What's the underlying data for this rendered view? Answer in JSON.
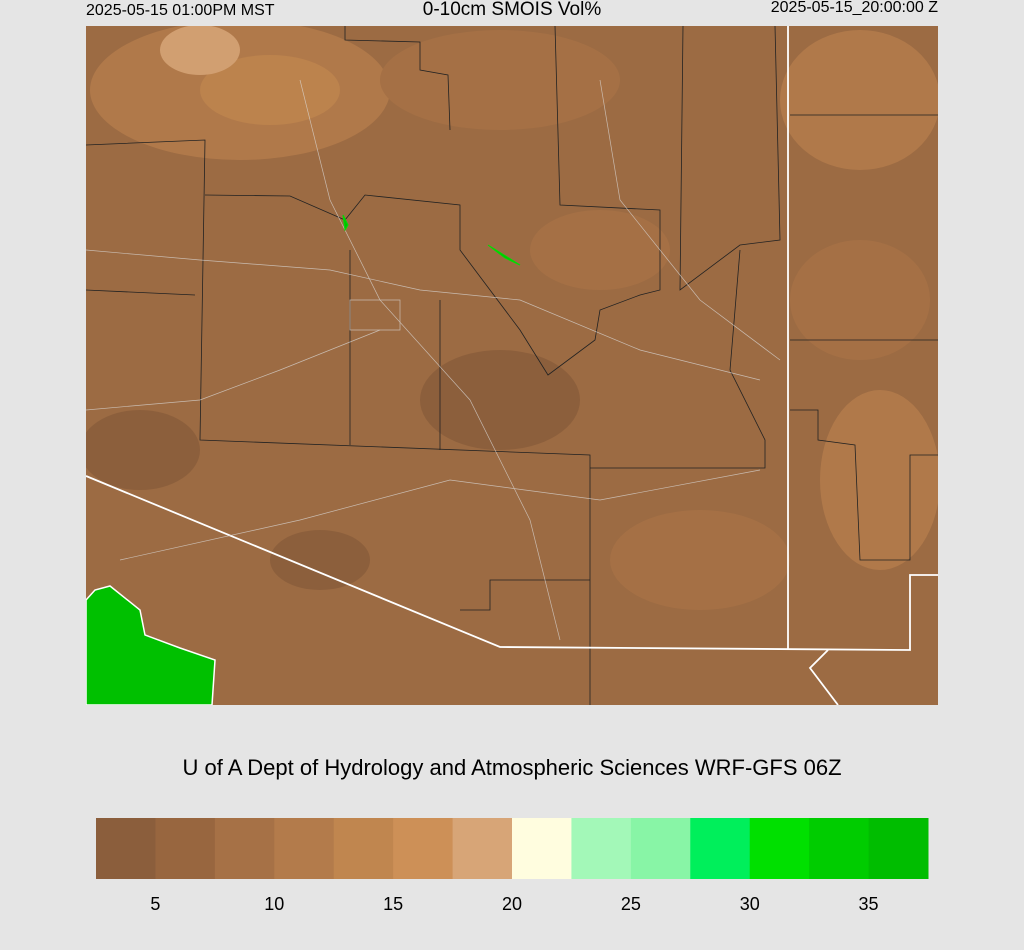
{
  "header": {
    "valid_time_local": "2025-05-15 01:00PM MST",
    "title": "0-10cm SMOIS Vol%",
    "valid_time_utc": "2025-05-15_20:00:00 Z"
  },
  "caption": "U of A Dept of Hydrology and Atmospheric Sciences WRF-GFS 06Z",
  "colorbar": {
    "colors": [
      "#8b5e3c",
      "#98663f",
      "#a67146",
      "#b37b4b",
      "#c0864f",
      "#cd9057",
      "#d7a577",
      "#fffddf",
      "#a3f8b8",
      "#88f5a6",
      "#00ef5b",
      "#00e000",
      "#00cc00",
      "#00bd00"
    ],
    "lim": [
      2.5,
      37.5
    ],
    "ticks": [
      5,
      10,
      15,
      20,
      25,
      30,
      35
    ]
  }
}
